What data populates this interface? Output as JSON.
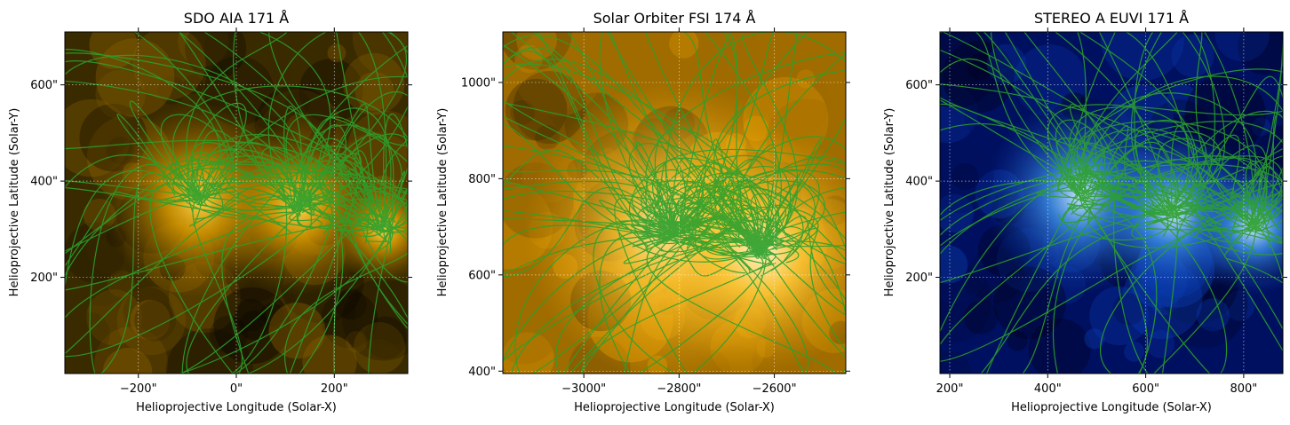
{
  "figure_title": "",
  "chart_data": [
    {
      "type": "heatmap",
      "title": "SDO AIA 171 Å",
      "xlabel": "Helioprojective Longitude (Solar-X)",
      "ylabel": "Helioprojective Latitude (Solar-Y)",
      "xlim": [
        -350,
        350
      ],
      "ylim": [
        0,
        710
      ],
      "xticks": [
        {
          "v": -200,
          "label": "−200\""
        },
        {
          "v": 0,
          "label": "0\""
        },
        {
          "v": 200,
          "label": "200\""
        }
      ],
      "yticks": [
        {
          "v": 200,
          "label": "200\""
        },
        {
          "v": 400,
          "label": "400\""
        },
        {
          "v": 600,
          "label": "600\""
        }
      ],
      "colormap": [
        "#0a0700",
        "#3a2a00",
        "#8a6200",
        "#d99a00",
        "#ffd24a"
      ],
      "line_color": "#2ca02c",
      "grid": true,
      "footpoints": [
        {
          "x": -75,
          "y": 360,
          "w": 1.0
        },
        {
          "x": 125,
          "y": 345,
          "w": 0.9
        },
        {
          "x": 300,
          "y": 300,
          "w": 0.55
        }
      ]
    },
    {
      "type": "heatmap",
      "title": "Solar Orbiter FSI 174 Å",
      "xlabel": "Helioprojective Longitude (Solar-X)",
      "ylabel": "Helioprojective Latitude (Solar-Y)",
      "xlim": [
        -3170,
        -2450
      ],
      "ylim": [
        395,
        1105
      ],
      "xticks": [
        {
          "v": -3000,
          "label": "−3000\""
        },
        {
          "v": -2800,
          "label": "−2800\""
        },
        {
          "v": -2600,
          "label": "−2600\""
        }
      ],
      "yticks": [
        {
          "v": 400,
          "label": "400\""
        },
        {
          "v": 600,
          "label": "600\""
        },
        {
          "v": 800,
          "label": "800\""
        },
        {
          "v": 1000,
          "label": "1000\""
        }
      ],
      "colormap": [
        "#3a2a00",
        "#a06c00",
        "#e9a100",
        "#ffc93a",
        "#fff3c8"
      ],
      "line_color": "#2ca02c",
      "grid": true,
      "footpoints": [
        {
          "x": -2810,
          "y": 690,
          "w": 1.0
        },
        {
          "x": -2630,
          "y": 650,
          "w": 0.8
        }
      ]
    },
    {
      "type": "heatmap",
      "title": "STEREO A EUVI 171 Å",
      "xlabel": "Helioprojective Longitude (Solar-X)",
      "ylabel": "Helioprojective Latitude (Solar-Y)",
      "xlim": [
        180,
        880
      ],
      "ylim": [
        0,
        710
      ],
      "xticks": [
        {
          "v": 200,
          "label": "200\""
        },
        {
          "v": 400,
          "label": "400\""
        },
        {
          "v": 600,
          "label": "600\""
        },
        {
          "v": 800,
          "label": "800\""
        }
      ],
      "yticks": [
        {
          "v": 200,
          "label": "200\""
        },
        {
          "v": 400,
          "label": "400\""
        },
        {
          "v": 600,
          "label": "600\""
        }
      ],
      "colormap": [
        "#000018",
        "#001060",
        "#0a3cb0",
        "#3c8ee6",
        "#cfeaff"
      ],
      "line_color": "#2ca02c",
      "grid": true,
      "footpoints": [
        {
          "x": 470,
          "y": 370,
          "w": 1.0
        },
        {
          "x": 655,
          "y": 335,
          "w": 0.9
        },
        {
          "x": 820,
          "y": 305,
          "w": 0.7
        }
      ]
    }
  ]
}
